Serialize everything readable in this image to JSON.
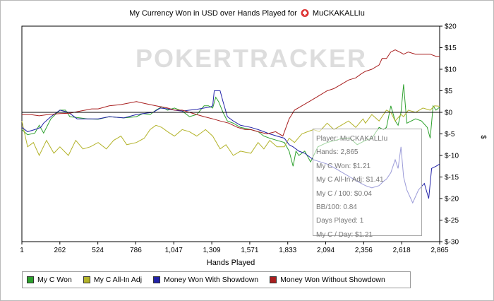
{
  "title": "My Currency Won in USD over Hands Played for",
  "player_name": "MuCKAKALLIu",
  "watermark": "POKERTRACKER",
  "tooltip": {
    "lines": [
      "Player: MuCKAKALLIu",
      "Hands: 2,865",
      "My C Won: $1.21",
      "My C All-In Adj: $1.41",
      "My C / 100: $0.04",
      "BB/100: 0.84",
      "Days Played: 1",
      "My C / Day: $1.21"
    ]
  },
  "legend": [
    {
      "label": "My C Won",
      "color": "#2ea12e"
    },
    {
      "label": "My C All-In Adj",
      "color": "#b3b32a"
    },
    {
      "label": "Money Won With Showdown",
      "color": "#2222a8"
    },
    {
      "label": "Money Won Without Showdown",
      "color": "#a81e1e"
    }
  ],
  "chart_data": {
    "type": "line",
    "title": "My Currency Won in USD over Hands Played for MuCKAKALLIu",
    "xlabel": "Hands Played",
    "ylabel": "$",
    "xlim": [
      1,
      2865
    ],
    "ylim": [
      -30,
      20
    ],
    "x_ticks": [
      "1",
      "262",
      "524",
      "786",
      "1,047",
      "1,309",
      "1,571",
      "1,833",
      "2,094",
      "2,356",
      "2,618",
      "2,865"
    ],
    "y_ticks": [
      "$20",
      "$15",
      "$10",
      "$5",
      "$0",
      "$-5",
      "$-10",
      "$-15",
      "$-20",
      "$-25",
      "$-30"
    ],
    "y_tick_values": [
      20,
      15,
      10,
      5,
      0,
      -5,
      -10,
      -15,
      -20,
      -25,
      -30
    ],
    "grid": false,
    "legend_position": "bottom",
    "series": [
      {
        "name": "My C Won",
        "color": "#2ea12e",
        "points": [
          [
            1,
            -4.0
          ],
          [
            40,
            -5.2
          ],
          [
            90,
            -4.8
          ],
          [
            120,
            -3.0
          ],
          [
            150,
            -4.8
          ],
          [
            200,
            -1.5
          ],
          [
            262,
            0.5
          ],
          [
            300,
            0.5
          ],
          [
            330,
            -1.0
          ],
          [
            400,
            -1.3
          ],
          [
            450,
            -1.5
          ],
          [
            524,
            -1.6
          ],
          [
            600,
            -1.0
          ],
          [
            700,
            -1.3
          ],
          [
            786,
            -1.0
          ],
          [
            830,
            -0.3
          ],
          [
            880,
            -0.5
          ],
          [
            920,
            0.5
          ],
          [
            960,
            1.3
          ],
          [
            1000,
            0.5
          ],
          [
            1047,
            1.0
          ],
          [
            1100,
            0.3
          ],
          [
            1150,
            -1.0
          ],
          [
            1200,
            -0.5
          ],
          [
            1250,
            1.5
          ],
          [
            1280,
            1.5
          ],
          [
            1309,
            1.0
          ],
          [
            1330,
            3.5
          ],
          [
            1350,
            2.5
          ],
          [
            1380,
            0
          ],
          [
            1410,
            -2.0
          ],
          [
            1450,
            -2.5
          ],
          [
            1500,
            -3.5
          ],
          [
            1571,
            -4.0
          ],
          [
            1620,
            -4.5
          ],
          [
            1660,
            -5.5
          ],
          [
            1700,
            -6.0
          ],
          [
            1750,
            -6.5
          ],
          [
            1800,
            -7.0
          ],
          [
            1833,
            -9.0
          ],
          [
            1860,
            -12.5
          ],
          [
            1880,
            -9.0
          ],
          [
            1900,
            -10.0
          ],
          [
            1940,
            -9.0
          ],
          [
            1980,
            -11.5
          ],
          [
            2030,
            -8.0
          ],
          [
            2094,
            -7.0
          ],
          [
            2150,
            -6.5
          ],
          [
            2200,
            -6.0
          ],
          [
            2250,
            -6.0
          ],
          [
            2300,
            -7.5
          ],
          [
            2356,
            -6.5
          ],
          [
            2400,
            -6.0
          ],
          [
            2450,
            -3.5
          ],
          [
            2480,
            -4.0
          ],
          [
            2500,
            -3.5
          ],
          [
            2530,
            1.5
          ],
          [
            2560,
            -2.0
          ],
          [
            2580,
            -3.0
          ],
          [
            2600,
            0
          ],
          [
            2618,
            6.5
          ],
          [
            2640,
            -2.5
          ],
          [
            2700,
            -1.5
          ],
          [
            2740,
            -2.0
          ],
          [
            2780,
            -3.5
          ],
          [
            2800,
            -6.0
          ],
          [
            2820,
            1.5
          ],
          [
            2840,
            0.5
          ],
          [
            2865,
            1.21
          ]
        ]
      },
      {
        "name": "My C All-In Adj",
        "color": "#b3b32a",
        "points": [
          [
            1,
            -2.0
          ],
          [
            40,
            -8.0
          ],
          [
            80,
            -7.0
          ],
          [
            120,
            -10.0
          ],
          [
            170,
            -6.5
          ],
          [
            220,
            -9.5
          ],
          [
            262,
            -8.0
          ],
          [
            320,
            -10.0
          ],
          [
            370,
            -6.5
          ],
          [
            420,
            -8.5
          ],
          [
            470,
            -8.0
          ],
          [
            524,
            -7.0
          ],
          [
            580,
            -8.5
          ],
          [
            630,
            -6.5
          ],
          [
            680,
            -5.5
          ],
          [
            720,
            -7.5
          ],
          [
            786,
            -7.0
          ],
          [
            840,
            -6.0
          ],
          [
            880,
            -4.0
          ],
          [
            920,
            -3.0
          ],
          [
            960,
            -3.5
          ],
          [
            1000,
            -4.5
          ],
          [
            1047,
            -5.5
          ],
          [
            1100,
            -4.0
          ],
          [
            1150,
            -4.5
          ],
          [
            1200,
            -5.5
          ],
          [
            1260,
            -4.0
          ],
          [
            1309,
            -5.5
          ],
          [
            1360,
            -8.5
          ],
          [
            1400,
            -7.5
          ],
          [
            1450,
            -10.0
          ],
          [
            1500,
            -9.0
          ],
          [
            1571,
            -9.5
          ],
          [
            1620,
            -7.0
          ],
          [
            1660,
            -8.5
          ],
          [
            1700,
            -6.5
          ],
          [
            1750,
            -8.0
          ],
          [
            1800,
            -8.0
          ],
          [
            1833,
            -6.0
          ],
          [
            1870,
            -7.0
          ],
          [
            1920,
            -5.0
          ],
          [
            1960,
            -4.5
          ],
          [
            2000,
            -4.0
          ],
          [
            2040,
            -4.5
          ],
          [
            2094,
            -2.5
          ],
          [
            2140,
            -4.0
          ],
          [
            2190,
            -3.0
          ],
          [
            2240,
            -2.0
          ],
          [
            2290,
            -3.5
          ],
          [
            2340,
            -1.5
          ],
          [
            2356,
            -2.5
          ],
          [
            2400,
            -0.5
          ],
          [
            2450,
            -2.0
          ],
          [
            2500,
            0.5
          ],
          [
            2530,
            0
          ],
          [
            2560,
            -2.0
          ],
          [
            2600,
            -0.5
          ],
          [
            2618,
            -1.0
          ],
          [
            2650,
            0.5
          ],
          [
            2700,
            0
          ],
          [
            2750,
            1.0
          ],
          [
            2800,
            0.5
          ],
          [
            2830,
            1.5
          ],
          [
            2865,
            1.41
          ]
        ]
      },
      {
        "name": "Money Won With Showdown",
        "color": "#2222a8",
        "points": [
          [
            1,
            -3.5
          ],
          [
            40,
            -4.5
          ],
          [
            90,
            -4.0
          ],
          [
            130,
            -3.5
          ],
          [
            150,
            -2.5
          ],
          [
            200,
            -1.0
          ],
          [
            262,
            0.5
          ],
          [
            320,
            0
          ],
          [
            380,
            -1.5
          ],
          [
            450,
            -1.5
          ],
          [
            524,
            -1.5
          ],
          [
            600,
            -1.0
          ],
          [
            700,
            -1.3
          ],
          [
            786,
            -0.5
          ],
          [
            850,
            -0.2
          ],
          [
            900,
            0
          ],
          [
            950,
            1.0
          ],
          [
            1000,
            0.8
          ],
          [
            1047,
            0.5
          ],
          [
            1100,
            0.3
          ],
          [
            1150,
            0.5
          ],
          [
            1200,
            0.7
          ],
          [
            1250,
            1.0
          ],
          [
            1290,
            1.2
          ],
          [
            1309,
            1.5
          ],
          [
            1320,
            5.0
          ],
          [
            1360,
            5.0
          ],
          [
            1380,
            2.5
          ],
          [
            1410,
            -1.0
          ],
          [
            1450,
            -2.0
          ],
          [
            1500,
            -3.0
          ],
          [
            1571,
            -3.5
          ],
          [
            1620,
            -4.0
          ],
          [
            1660,
            -4.5
          ],
          [
            1700,
            -5.0
          ],
          [
            1750,
            -5.5
          ],
          [
            1800,
            -6.0
          ],
          [
            1833,
            -7.5
          ],
          [
            1860,
            -8.0
          ],
          [
            1900,
            -9.0
          ],
          [
            1940,
            -9.5
          ],
          [
            2000,
            -11.0
          ],
          [
            2094,
            -12.0
          ],
          [
            2150,
            -13.0
          ],
          [
            2200,
            -14.0
          ],
          [
            2250,
            -15.0
          ],
          [
            2300,
            -16.0
          ],
          [
            2356,
            -17.0
          ],
          [
            2400,
            -17.5
          ],
          [
            2450,
            -17.0
          ],
          [
            2480,
            -16.0
          ],
          [
            2500,
            -15.5
          ],
          [
            2530,
            -14.0
          ],
          [
            2560,
            -11.0
          ],
          [
            2580,
            -13.0
          ],
          [
            2600,
            -8.0
          ],
          [
            2618,
            -15.0
          ],
          [
            2640,
            -18.0
          ],
          [
            2680,
            -21.0
          ],
          [
            2720,
            -18.0
          ],
          [
            2760,
            -16.5
          ],
          [
            2790,
            -20.0
          ],
          [
            2810,
            -13.0
          ],
          [
            2840,
            -12.5
          ],
          [
            2865,
            -12.0
          ]
        ]
      },
      {
        "name": "Money Won Without Showdown",
        "color": "#a81e1e",
        "points": [
          [
            1,
            -0.5
          ],
          [
            60,
            -0.5
          ],
          [
            120,
            -0.8
          ],
          [
            180,
            -0.5
          ],
          [
            262,
            -0.3
          ],
          [
            330,
            -0.2
          ],
          [
            400,
            0.3
          ],
          [
            480,
            0.8
          ],
          [
            524,
            0.8
          ],
          [
            600,
            1.5
          ],
          [
            680,
            1.8
          ],
          [
            786,
            2.5
          ],
          [
            850,
            2.0
          ],
          [
            920,
            1.5
          ],
          [
            1000,
            1.0
          ],
          [
            1047,
            0.5
          ],
          [
            1100,
            0.5
          ],
          [
            1150,
            0
          ],
          [
            1200,
            -0.5
          ],
          [
            1250,
            -1.0
          ],
          [
            1309,
            -1.5
          ],
          [
            1360,
            -2.0
          ],
          [
            1420,
            -2.5
          ],
          [
            1480,
            -3.5
          ],
          [
            1530,
            -4.0
          ],
          [
            1571,
            -4.0
          ],
          [
            1620,
            -4.5
          ],
          [
            1680,
            -5.0
          ],
          [
            1740,
            -4.5
          ],
          [
            1790,
            -5.5
          ],
          [
            1833,
            -1.5
          ],
          [
            1870,
            0.5
          ],
          [
            1920,
            1.5
          ],
          [
            1970,
            2.5
          ],
          [
            2020,
            3.5
          ],
          [
            2094,
            5.0
          ],
          [
            2140,
            5.5
          ],
          [
            2190,
            6.5
          ],
          [
            2240,
            7.5
          ],
          [
            2290,
            8.0
          ],
          [
            2330,
            9.0
          ],
          [
            2356,
            9.5
          ],
          [
            2400,
            10.0
          ],
          [
            2450,
            11.0
          ],
          [
            2470,
            12.5
          ],
          [
            2500,
            12.5
          ],
          [
            2530,
            14.0
          ],
          [
            2560,
            14.5
          ],
          [
            2590,
            14.0
          ],
          [
            2618,
            13.5
          ],
          [
            2650,
            14.0
          ],
          [
            2700,
            13.5
          ],
          [
            2750,
            13.5
          ],
          [
            2800,
            13.5
          ],
          [
            2840,
            13.0
          ],
          [
            2865,
            13.0
          ]
        ]
      }
    ]
  }
}
